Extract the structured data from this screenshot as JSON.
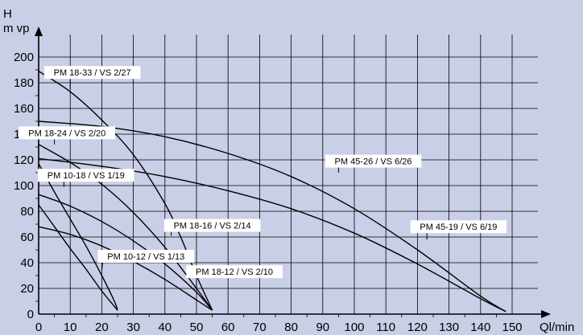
{
  "chart_data": {
    "type": "line",
    "title": "",
    "ylabel": "H",
    "ylabel_unit": "m vp",
    "xlabel": "Ql/min",
    "xlim": [
      0,
      150
    ],
    "ylim": [
      0,
      200
    ],
    "x_ticks": [
      0,
      10,
      20,
      30,
      40,
      50,
      60,
      70,
      80,
      90,
      100,
      110,
      120,
      130,
      140,
      150
    ],
    "y_ticks": [
      0,
      20,
      40,
      60,
      80,
      100,
      120,
      140,
      160,
      180,
      200
    ],
    "grid": true,
    "series": [
      {
        "name": "PM 18-33 / VS 2/27",
        "points": [
          [
            0,
            189
          ],
          [
            10,
            173
          ],
          [
            20,
            151
          ],
          [
            30,
            124
          ],
          [
            40,
            86
          ],
          [
            45,
            60
          ],
          [
            50,
            30
          ],
          [
            55,
            3
          ]
        ],
        "label_at": [
          10,
          175
        ]
      },
      {
        "name": "PM 18-24 / VS 2/20",
        "points": [
          [
            0,
            132
          ],
          [
            10,
            118
          ],
          [
            20,
            101
          ],
          [
            30,
            79
          ],
          [
            40,
            52
          ],
          [
            50,
            20
          ],
          [
            55,
            3
          ]
        ],
        "label_at": [
          5,
          132
        ]
      },
      {
        "name": "PM 18-16 / VS 2/14",
        "points": [
          [
            0,
            93
          ],
          [
            10,
            84
          ],
          [
            20,
            72
          ],
          [
            30,
            57
          ],
          [
            40,
            39
          ],
          [
            50,
            17
          ],
          [
            55,
            3
          ]
        ],
        "label_at": [
          42,
          61
        ]
      },
      {
        "name": "PM 18-12 / VS 2/10",
        "points": [
          [
            0,
            68
          ],
          [
            10,
            62
          ],
          [
            20,
            53
          ],
          [
            30,
            41
          ],
          [
            40,
            27
          ],
          [
            50,
            11
          ],
          [
            55,
            3
          ]
        ],
        "label_at": [
          50,
          20
        ]
      },
      {
        "name": "PM 10-18 / VS 1/19",
        "points": [
          [
            0,
            117
          ],
          [
            5,
            95
          ],
          [
            10,
            74
          ],
          [
            15,
            53
          ],
          [
            20,
            30
          ],
          [
            24,
            10
          ],
          [
            25,
            3
          ]
        ],
        "label_at": [
          8,
          99
        ]
      },
      {
        "name": "PM 10-12 / VS 1/13",
        "points": [
          [
            0,
            85
          ],
          [
            5,
            68
          ],
          [
            10,
            51
          ],
          [
            15,
            35
          ],
          [
            20,
            18
          ],
          [
            24,
            6
          ],
          [
            25,
            3
          ]
        ],
        "label_at": [
          20,
          34
        ]
      },
      {
        "name": "PM 45-26 / VS 6/26",
        "points": [
          [
            0,
            150
          ],
          [
            20,
            146
          ],
          [
            40,
            138
          ],
          [
            60,
            125
          ],
          [
            80,
            107
          ],
          [
            100,
            82
          ],
          [
            120,
            50
          ],
          [
            140,
            14
          ],
          [
            148,
            2
          ]
        ],
        "label_at": [
          95,
          110
        ]
      },
      {
        "name": "PM 45-19 / VS 6/19",
        "points": [
          [
            0,
            121
          ],
          [
            20,
            115
          ],
          [
            40,
            107
          ],
          [
            60,
            96
          ],
          [
            80,
            82
          ],
          [
            100,
            63
          ],
          [
            120,
            39
          ],
          [
            140,
            12
          ],
          [
            148,
            2
          ]
        ],
        "label_at": [
          123,
          58
        ]
      }
    ],
    "labels": [
      {
        "series": "PM 18-33 / VS 2/27",
        "x": 17,
        "y": 188
      },
      {
        "series": "PM 18-24 / VS 2/20",
        "x": 9,
        "y": 141
      },
      {
        "series": "PM 10-18 / VS 1/19",
        "x": 15,
        "y": 108
      },
      {
        "series": "PM 18-16 / VS 2/14",
        "x": 55,
        "y": 69
      },
      {
        "series": "PM 10-12 / VS 1/13",
        "x": 34,
        "y": 45
      },
      {
        "series": "PM 18-12 / VS 2/10",
        "x": 62,
        "y": 33
      },
      {
        "series": "PM 45-26 / VS 6/26",
        "x": 106,
        "y": 119
      },
      {
        "series": "PM 45-19 / VS 6/19",
        "x": 133,
        "y": 68
      }
    ]
  }
}
